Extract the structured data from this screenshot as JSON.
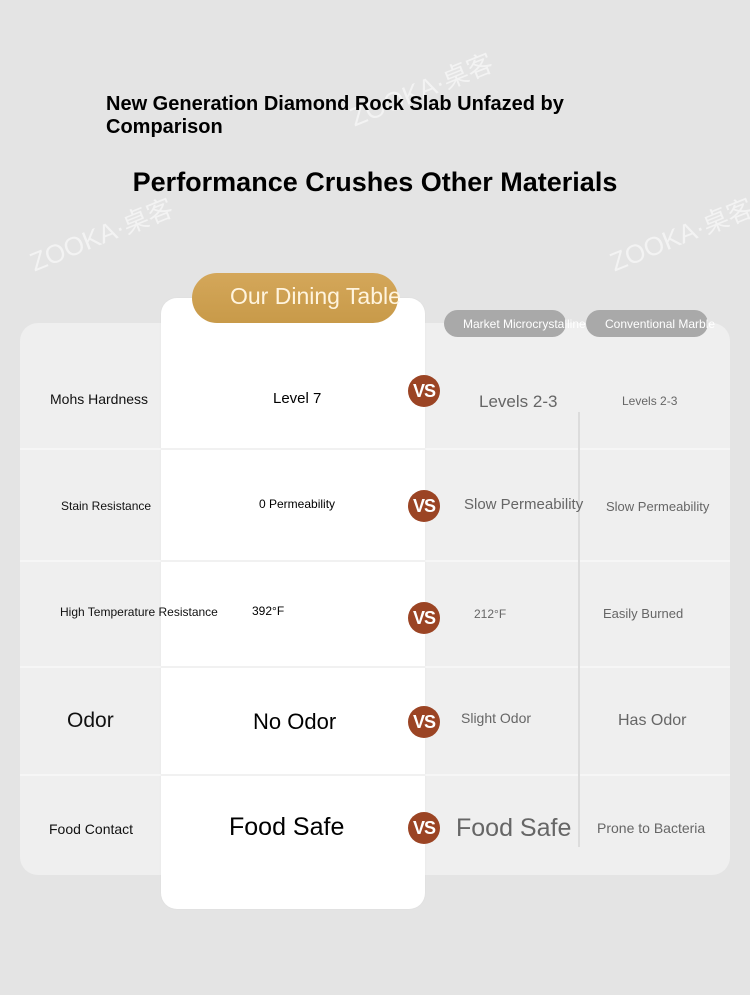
{
  "header": {
    "headline": "New Generation Diamond Rock Slab Unfazed by Comparison",
    "subheadline": "Performance Crushes Other Materials"
  },
  "watermark": "ZOOKA·桌客",
  "columns": {
    "ours": "Our Dining Table",
    "market": "Market Microcrystalline Stone",
    "conventional": "Conventional Marble"
  },
  "vs_label": "VS",
  "rows": [
    {
      "feature": "Mohs Hardness",
      "ours": "Level 7",
      "market": "Levels 2-3",
      "conventional": "Levels 2-3"
    },
    {
      "feature": "Stain Resistance",
      "ours": "0 Permeability",
      "market": "Slow Permeability",
      "conventional": "Slow Permeability"
    },
    {
      "feature": "High Temperature Resistance",
      "ours": "392°F",
      "market": "212°F",
      "conventional": "Easily Burned"
    },
    {
      "feature": "Odor",
      "ours": "No Odor",
      "market": "Slight Odor",
      "conventional": "Has Odor"
    },
    {
      "feature": "Food Contact",
      "ours": "Food Safe",
      "market": "Food Safe",
      "conventional": "Prone to Bacteria"
    }
  ],
  "colors": {
    "background": "#e4e4e4",
    "accent_gold": "#cfa152",
    "vs_badge": "#9b4424",
    "comparison_pill": "#a9a9a9"
  }
}
